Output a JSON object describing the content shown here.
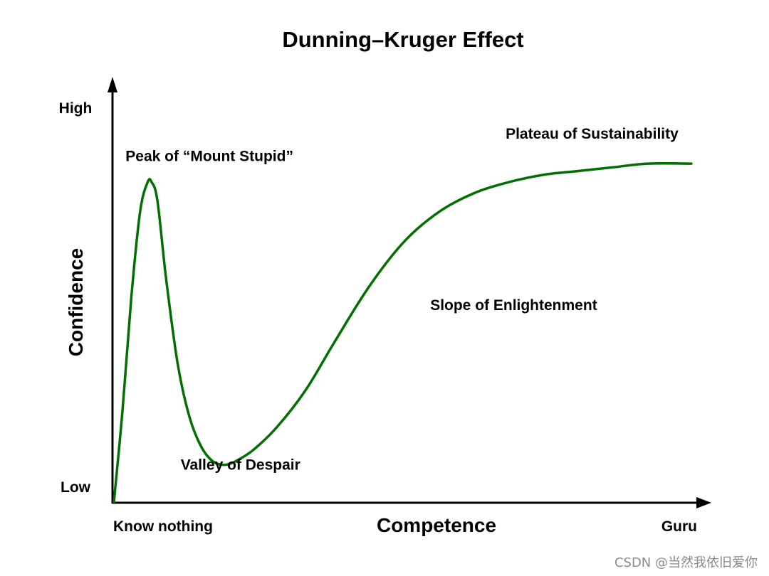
{
  "chart_data": {
    "type": "line",
    "title": "Dunning–Kruger Effect",
    "xlabel": "Competence",
    "ylabel": "Confidence",
    "x_tick_labels": [
      "Know nothing",
      "Guru"
    ],
    "y_tick_labels": [
      "High",
      "Low"
    ],
    "xlim": [
      0,
      100
    ],
    "ylim": [
      0,
      100
    ],
    "grid": false,
    "legend": "none",
    "series": [
      {
        "color": "#007000",
        "x": [
          0,
          1.5,
          3,
          4.5,
          5.8,
          6.5,
          7.5,
          9,
          11,
          13,
          15,
          17,
          19,
          21,
          24,
          28,
          33,
          38,
          44,
          50,
          56,
          62,
          68,
          74,
          80,
          86,
          92,
          99.5
        ],
        "y": [
          0,
          25,
          55,
          78,
          86,
          86,
          81,
          60,
          37,
          23,
          15,
          11,
          10,
          11,
          14,
          20,
          30,
          43,
          58,
          70,
          78,
          83,
          86,
          88,
          89,
          90,
          91,
          91
        ]
      }
    ],
    "annotations": [
      {
        "text": "Peak of “Mount Stupid”",
        "x": 2,
        "y": 93
      },
      {
        "text": "Valley of Despair",
        "x": 11.5,
        "y": 10
      },
      {
        "text": "Slope of Enlightenment",
        "x": 54.5,
        "y": 53
      },
      {
        "text": "Plateau of Sustainability",
        "x": 67.5,
        "y": 99
      }
    ]
  },
  "watermark": "CSDN @当然我依旧爱你",
  "colors": {
    "curve": "#007000",
    "axis": "#000000",
    "watermark": "#8a8a8a"
  }
}
